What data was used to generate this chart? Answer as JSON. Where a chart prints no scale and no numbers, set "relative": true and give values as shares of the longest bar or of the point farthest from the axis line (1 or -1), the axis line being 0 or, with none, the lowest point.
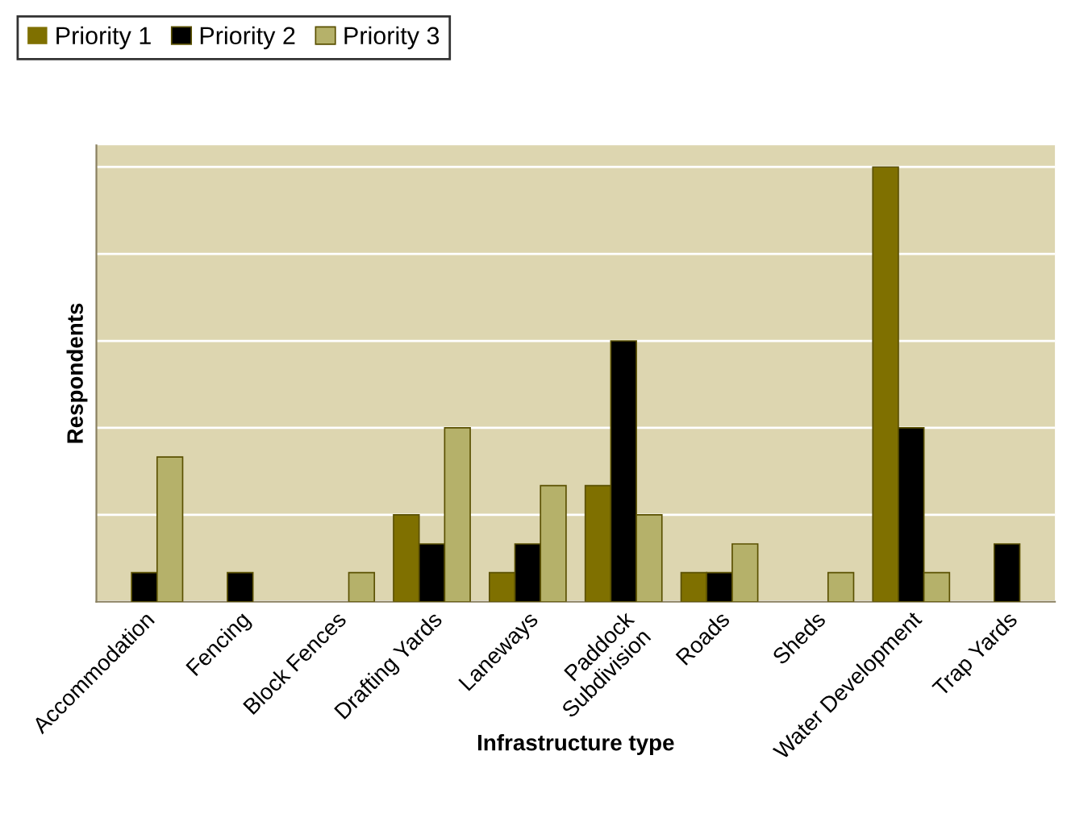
{
  "chart_data": {
    "type": "bar",
    "xlabel": "Infrastructure type",
    "ylabel": "Respondents",
    "relative": true,
    "grid": "y",
    "legend": "top left",
    "categories": [
      "Accommodation",
      "Fencing",
      "Block Fences",
      "Drafting Yards",
      "Laneways",
      "Paddock\nSubdivision",
      "Roads",
      "Sheds",
      "Water Development",
      "Trap Yards"
    ],
    "series": [
      {
        "name": "Priority 1",
        "color": "#7f7000",
        "values": [
          0,
          0,
          0,
          0.2,
          0.067,
          0.267,
          0.067,
          0,
          1,
          0
        ]
      },
      {
        "name": "Priority 2",
        "color": "#000000",
        "values": [
          0.067,
          0.067,
          0,
          0.133,
          0.133,
          0.6,
          0.067,
          0,
          0.4,
          0.133
        ]
      },
      {
        "name": "Priority 3",
        "color": "#b5b16a",
        "values": [
          0.333,
          0,
          0.067,
          0.4,
          0.267,
          0.2,
          0.133,
          0.067,
          0.067,
          0
        ]
      }
    ]
  }
}
